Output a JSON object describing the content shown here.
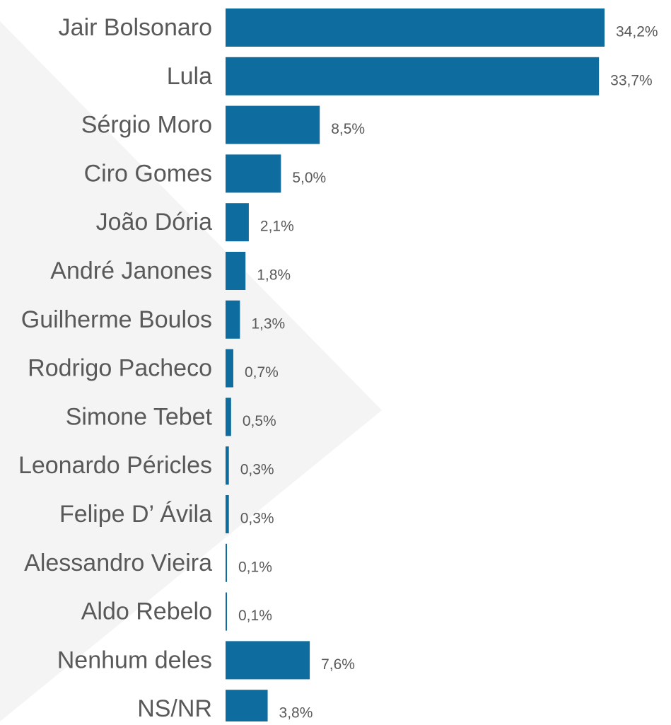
{
  "chart_data": {
    "type": "bar",
    "orientation": "horizontal",
    "categories": [
      "Jair Bolsonaro",
      "Lula",
      "Sérgio Moro",
      "Ciro Gomes",
      "João Dória",
      "André Janones",
      "Guilherme Boulos",
      "Rodrigo Pacheco",
      "Simone Tebet",
      "Leonardo Péricles",
      "Felipe D’ Ávila",
      "Alessandro Vieira",
      "Aldo Rebelo",
      "Nenhum deles",
      "NS/NR"
    ],
    "values": [
      34.2,
      33.7,
      8.5,
      5.0,
      2.1,
      1.8,
      1.3,
      0.7,
      0.5,
      0.3,
      0.3,
      0.1,
      0.1,
      7.6,
      3.8
    ],
    "value_labels": [
      "34,2%",
      "33,7%",
      "8,5%",
      "5,0%",
      "2,1%",
      "1,8%",
      "1,3%",
      "0,7%",
      "0,5%",
      "0,3%",
      "0,3%",
      "0,1%",
      "0,1%",
      "7,6%",
      "3,8%"
    ],
    "xlim": [
      0,
      34.2
    ],
    "title": "",
    "xlabel": "",
    "ylabel": "",
    "grid": false,
    "legend": "none",
    "colors": {
      "bar": "#0E6D9E",
      "label_text": "#595959",
      "background_shape": "#F4F4F4"
    }
  }
}
